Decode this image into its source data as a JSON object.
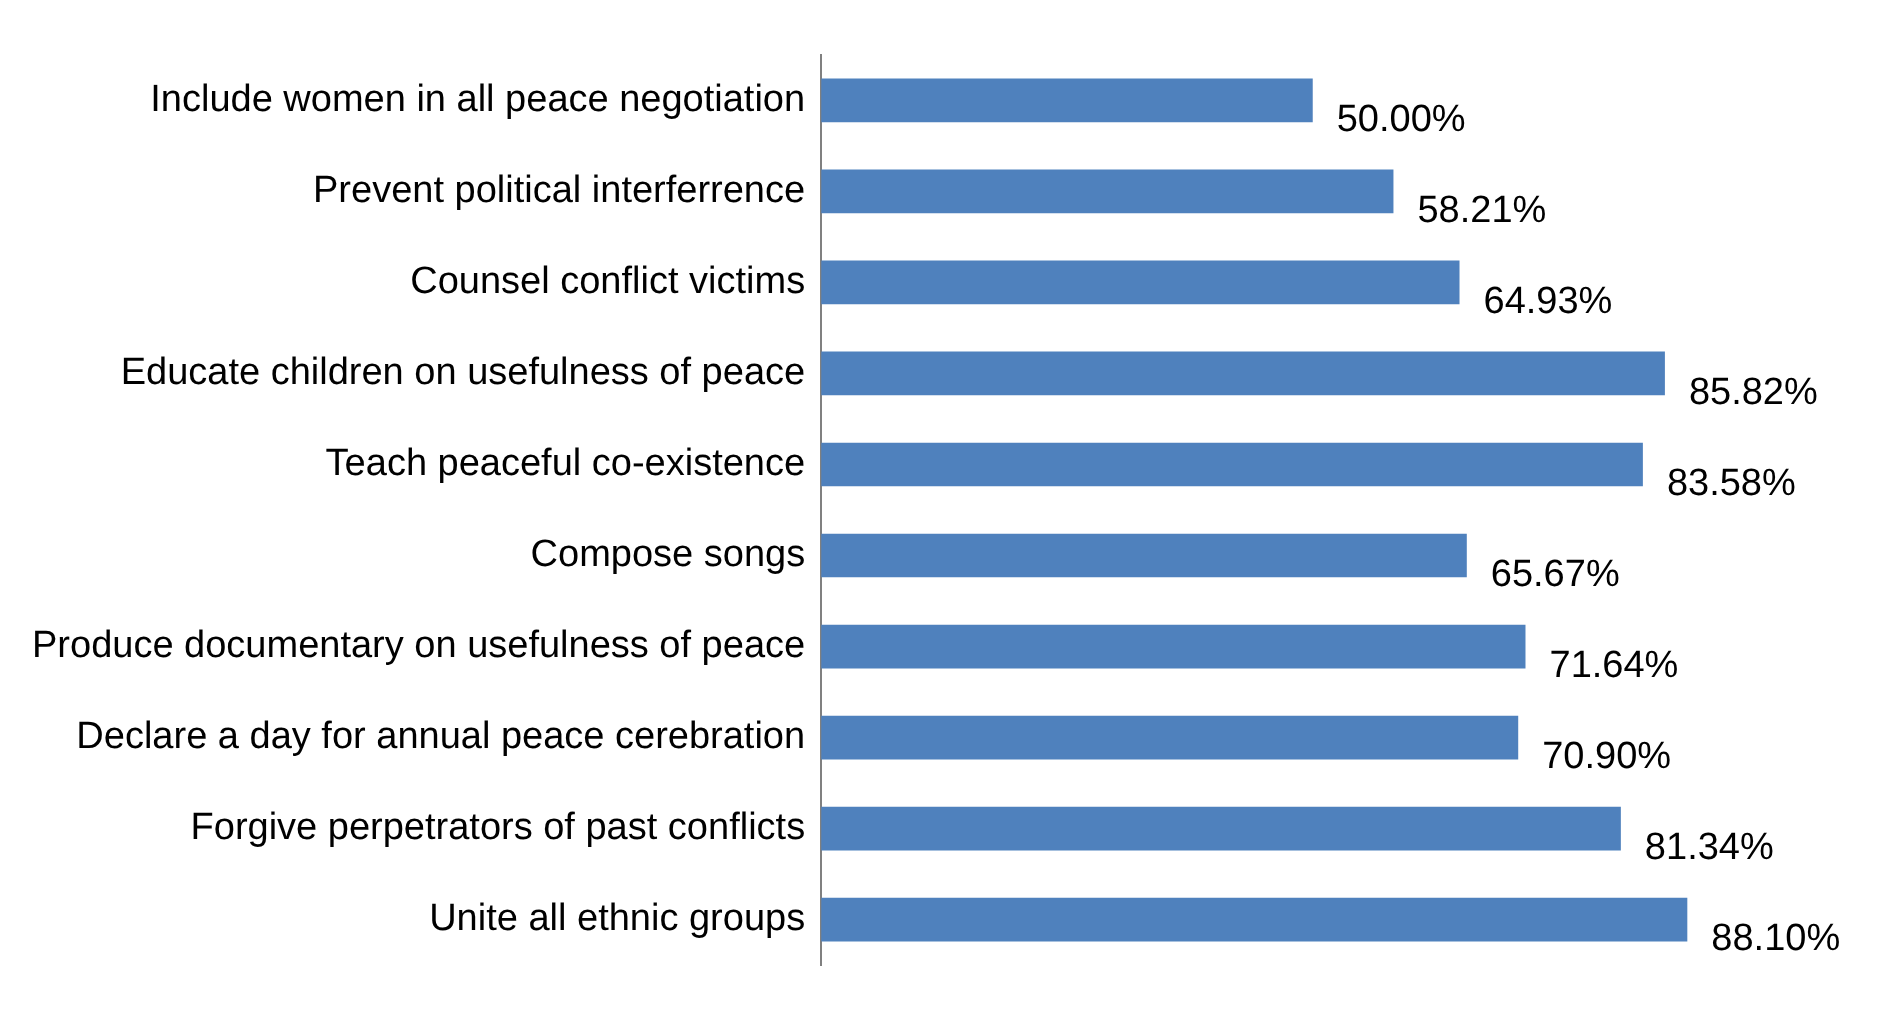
{
  "chart_data": {
    "type": "bar",
    "orientation": "horizontal",
    "categories": [
      "Include women in all peace negotiation",
      "Prevent political interferrence",
      "Counsel conflict victims",
      "Educate children on usefulness of peace",
      "Teach peaceful co-existence",
      "Compose songs",
      "Produce documentary on usefulness of peace",
      "Declare a day for annual peace cerebration",
      "Forgive perpetrators of past conflicts",
      "Unite all ethnic groups"
    ],
    "values": [
      50.0,
      58.21,
      64.93,
      85.82,
      83.58,
      65.67,
      71.64,
      70.9,
      81.34,
      88.1
    ],
    "value_labels": [
      "50.00%",
      "58.21%",
      "64.93%",
      "85.82%",
      "83.58%",
      "65.67%",
      "71.64%",
      "70.90%",
      "81.34%",
      "88.10%"
    ],
    "color": "#4f81bd",
    "grid": false,
    "legend": false,
    "tick_labels": "y"
  }
}
